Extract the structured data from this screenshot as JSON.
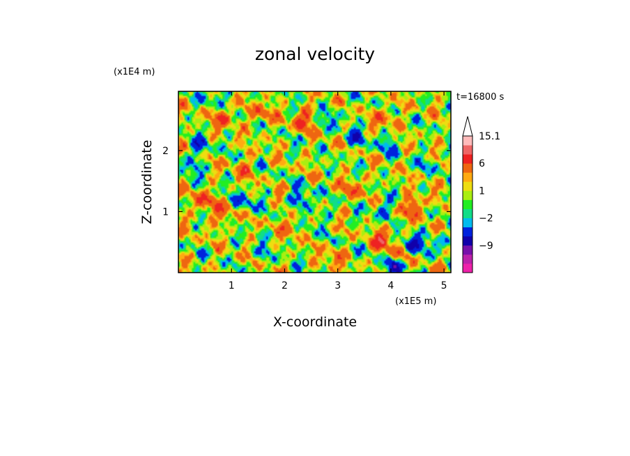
{
  "chart_data": {
    "type": "heatmap",
    "title": "zonal velocity",
    "xlabel": "X-coordinate",
    "ylabel": "Z-coordinate",
    "x_unit": "(x1E5 m)",
    "y_unit": "(x1E4 m)",
    "time_label": "t=16800 s",
    "xlim": [
      0,
      5.13
    ],
    "ylim": [
      0,
      2.97
    ],
    "x_ticks": [
      "1",
      "2",
      "3",
      "4",
      "5"
    ],
    "y_ticks": [
      "1",
      "2"
    ],
    "colorbar": {
      "levels_low_to_high": [
        -15,
        -12,
        -9,
        -6,
        -3,
        -2,
        -1,
        0,
        1,
        2,
        3,
        6,
        9,
        12,
        15.1
      ],
      "colors_low_to_high": [
        "#ee22aa",
        "#bb22aa",
        "#7711aa",
        "#1100aa",
        "#0022dd",
        "#00bbee",
        "#11dd88",
        "#22ee22",
        "#aaee11",
        "#eedd11",
        "#ffaa11",
        "#ee6611",
        "#ee2222",
        "#ee6666",
        "#ffbbbb"
      ],
      "extend_top_color": "#ffffff",
      "labels": [
        {
          "text": "15.1",
          "value": 15.1
        },
        {
          "text": "6",
          "value": 6
        },
        {
          "text": "1",
          "value": 1
        },
        {
          "text": "−2",
          "value": -2
        },
        {
          "text": "−9",
          "value": -9
        }
      ]
    },
    "features": [
      {
        "x": 0.85,
        "z": 2.55,
        "value": 5
      },
      {
        "x": 1.55,
        "z": 2.6,
        "value": 4
      },
      {
        "x": 2.35,
        "z": 2.5,
        "value": 5
      },
      {
        "x": 3.9,
        "z": 2.55,
        "value": 4
      },
      {
        "x": 0.45,
        "z": 1.15,
        "value": 5
      },
      {
        "x": 0.85,
        "z": 0.95,
        "value": 4
      },
      {
        "x": 1.25,
        "z": 1.7,
        "value": 3
      },
      {
        "x": 2.15,
        "z": 0.8,
        "value": 4
      },
      {
        "x": 3.85,
        "z": 0.55,
        "value": 6
      },
      {
        "x": 4.45,
        "z": 1.1,
        "value": 6
      },
      {
        "x": 4.15,
        "z": 0.3,
        "value": 4
      },
      {
        "x": 3.3,
        "z": 1.4,
        "value": 4
      },
      {
        "x": 2.9,
        "z": 0.25,
        "value": 3
      },
      {
        "x": 0.4,
        "z": 2.05,
        "value": -4
      },
      {
        "x": 0.2,
        "z": 1.7,
        "value": -3
      },
      {
        "x": 1.25,
        "z": 1.15,
        "value": -4
      },
      {
        "x": 2.3,
        "z": 1.2,
        "value": -5
      },
      {
        "x": 2.55,
        "z": 0.9,
        "value": -3
      },
      {
        "x": 3.85,
        "z": 1.05,
        "value": -4
      },
      {
        "x": 4.4,
        "z": 0.45,
        "value": -7
      },
      {
        "x": 4.05,
        "z": 0.1,
        "value": -6
      },
      {
        "x": 3.35,
        "z": 2.2,
        "value": -4
      },
      {
        "x": 3.95,
        "z": 2.1,
        "value": -3
      },
      {
        "x": 0.7,
        "z": 2.9,
        "value": -3
      },
      {
        "x": 2.9,
        "z": 2.55,
        "value": -3
      },
      {
        "x": 4.7,
        "z": 1.8,
        "value": -2
      },
      {
        "x": 1.6,
        "z": 0.3,
        "value": -2
      },
      {
        "x": 4.95,
        "z": 0.5,
        "value": -3
      }
    ]
  }
}
